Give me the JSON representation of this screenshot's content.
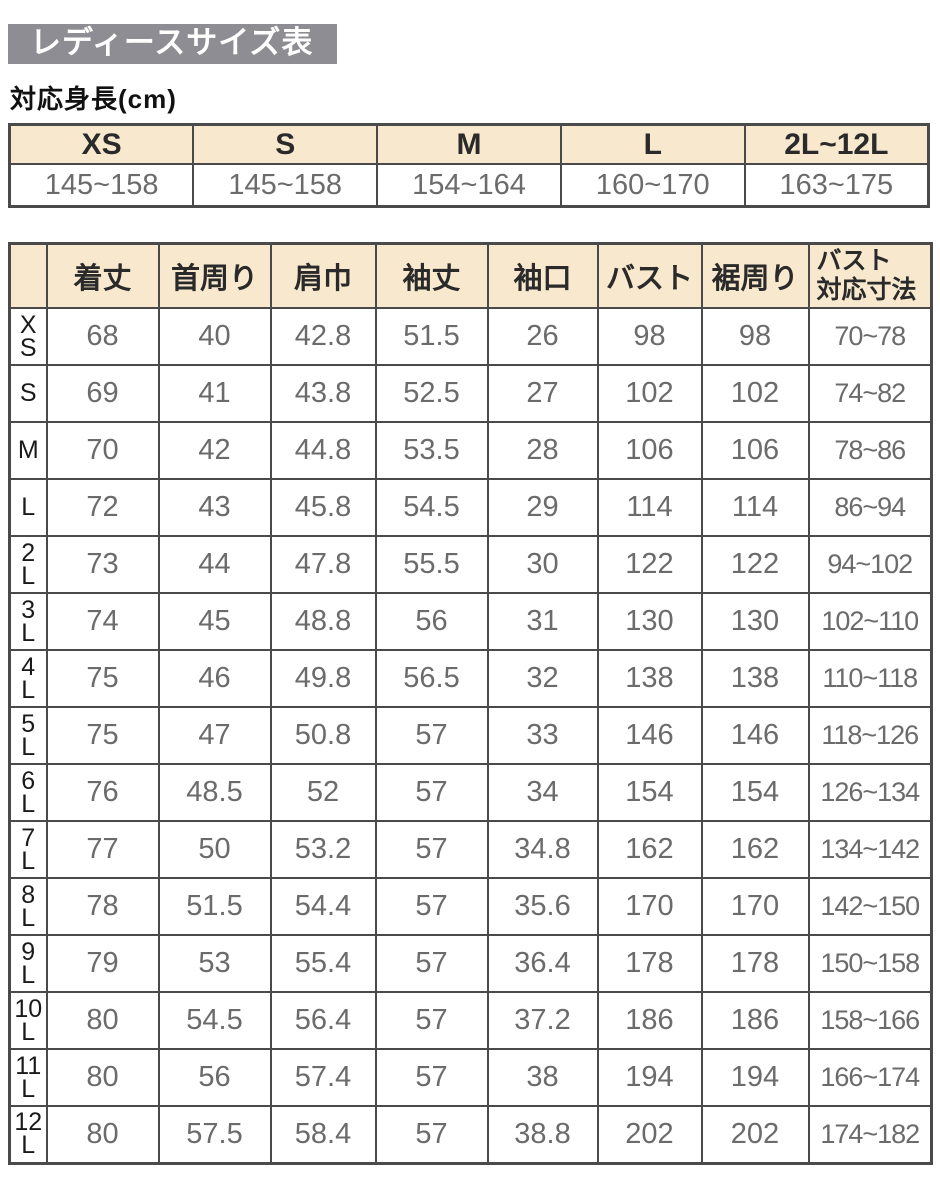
{
  "page": {
    "title": "レディースサイズ表",
    "subtitle": "対応身長(cm)"
  },
  "colors": {
    "title_bg": "#8d8d93",
    "title_text": "#ffffff",
    "header_bg": "#f8e8ce",
    "border": "#4a4a4a",
    "value_text": "#6b6b6b",
    "label_text": "#1a1a1a"
  },
  "height_table": {
    "headers": [
      "XS",
      "S",
      "M",
      "L",
      "2L~12L"
    ],
    "values": [
      "145~158",
      "145~158",
      "154~164",
      "160~170",
      "163~175"
    ]
  },
  "size_table": {
    "corner_label": "",
    "headers": [
      "着丈",
      "首周り",
      "肩巾",
      "袖丈",
      "袖口",
      "バスト",
      "裾周り"
    ],
    "last_header_lines": [
      "バスト",
      "対応寸法"
    ],
    "rows": [
      {
        "size": "XS",
        "size_lines": [
          "X",
          "S"
        ],
        "values": [
          "68",
          "40",
          "42.8",
          "51.5",
          "26",
          "98",
          "98",
          "70~78"
        ]
      },
      {
        "size": "S",
        "size_lines": [
          "S"
        ],
        "values": [
          "69",
          "41",
          "43.8",
          "52.5",
          "27",
          "102",
          "102",
          "74~82"
        ]
      },
      {
        "size": "M",
        "size_lines": [
          "M"
        ],
        "values": [
          "70",
          "42",
          "44.8",
          "53.5",
          "28",
          "106",
          "106",
          "78~86"
        ]
      },
      {
        "size": "L",
        "size_lines": [
          "L"
        ],
        "values": [
          "72",
          "43",
          "45.8",
          "54.5",
          "29",
          "114",
          "114",
          "86~94"
        ]
      },
      {
        "size": "2L",
        "size_lines": [
          "2",
          "L"
        ],
        "values": [
          "73",
          "44",
          "47.8",
          "55.5",
          "30",
          "122",
          "122",
          "94~102"
        ]
      },
      {
        "size": "3L",
        "size_lines": [
          "3",
          "L"
        ],
        "values": [
          "74",
          "45",
          "48.8",
          "56",
          "31",
          "130",
          "130",
          "102~110"
        ]
      },
      {
        "size": "4L",
        "size_lines": [
          "4",
          "L"
        ],
        "values": [
          "75",
          "46",
          "49.8",
          "56.5",
          "32",
          "138",
          "138",
          "110~118"
        ]
      },
      {
        "size": "5L",
        "size_lines": [
          "5",
          "L"
        ],
        "values": [
          "75",
          "47",
          "50.8",
          "57",
          "33",
          "146",
          "146",
          "118~126"
        ]
      },
      {
        "size": "6L",
        "size_lines": [
          "6",
          "L"
        ],
        "values": [
          "76",
          "48.5",
          "52",
          "57",
          "34",
          "154",
          "154",
          "126~134"
        ]
      },
      {
        "size": "7L",
        "size_lines": [
          "7",
          "L"
        ],
        "values": [
          "77",
          "50",
          "53.2",
          "57",
          "34.8",
          "162",
          "162",
          "134~142"
        ]
      },
      {
        "size": "8L",
        "size_lines": [
          "8",
          "L"
        ],
        "values": [
          "78",
          "51.5",
          "54.4",
          "57",
          "35.6",
          "170",
          "170",
          "142~150"
        ]
      },
      {
        "size": "9L",
        "size_lines": [
          "9",
          "L"
        ],
        "values": [
          "79",
          "53",
          "55.4",
          "57",
          "36.4",
          "178",
          "178",
          "150~158"
        ]
      },
      {
        "size": "10L",
        "size_lines": [
          "10",
          "L"
        ],
        "values": [
          "80",
          "54.5",
          "56.4",
          "57",
          "37.2",
          "186",
          "186",
          "158~166"
        ]
      },
      {
        "size": "11L",
        "size_lines": [
          "11",
          "L"
        ],
        "values": [
          "80",
          "56",
          "57.4",
          "57",
          "38",
          "194",
          "194",
          "166~174"
        ]
      },
      {
        "size": "12L",
        "size_lines": [
          "12",
          "L"
        ],
        "values": [
          "80",
          "57.5",
          "58.4",
          "57",
          "38.8",
          "202",
          "202",
          "174~182"
        ]
      }
    ]
  }
}
